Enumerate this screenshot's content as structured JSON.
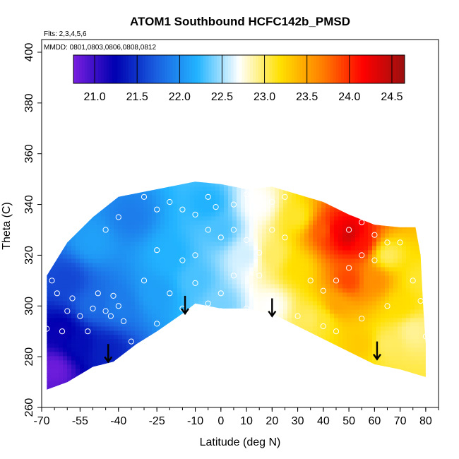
{
  "chart_data": {
    "type": "heatmap",
    "title": "ATOM1 Southbound HCFC142b_PMSD",
    "flights_note": "Flts: 2,3,4,5,6",
    "dates_note": "MMDD: 0801,0803,0806,0808,0812",
    "xlabel": "Latitude (deg N)",
    "ylabel": "Theta (C)",
    "xlim": [
      -70,
      85
    ],
    "ylim": [
      260,
      405
    ],
    "x_ticks": [
      -70,
      -55,
      -40,
      -25,
      -10,
      0,
      10,
      20,
      30,
      40,
      50,
      60,
      70,
      80
    ],
    "x_tick_labels": [
      "-70",
      "-55",
      "-40",
      "-25",
      "-10",
      "0",
      "10",
      "20",
      "30",
      "40",
      "50",
      "60",
      "70",
      "80"
    ],
    "y_ticks": [
      260,
      280,
      300,
      320,
      340,
      360,
      380,
      400
    ],
    "y_tick_labels": [
      "260",
      "280",
      "300",
      "320",
      "340",
      "360",
      "380",
      "400"
    ],
    "colorbar": {
      "min": 20.75,
      "max": 24.65,
      "ticks": [
        21.0,
        21.5,
        22.0,
        22.5,
        23.0,
        23.5,
        24.0,
        24.5
      ],
      "tick_labels": [
        "21.0",
        "21.5",
        "22.0",
        "22.5",
        "23.0",
        "23.5",
        "24.0",
        "24.5"
      ],
      "colors": [
        "#7a1fe0",
        "#0000b0",
        "#1a5fe0",
        "#22b4ff",
        "#ffffff",
        "#ffe000",
        "#ff8000",
        "#ff0000",
        "#9a1010"
      ]
    },
    "domain_top": [
      [
        -68,
        312
      ],
      [
        -60,
        325
      ],
      [
        -50,
        335
      ],
      [
        -40,
        343
      ],
      [
        -25,
        346
      ],
      [
        -10,
        349
      ],
      [
        0,
        348
      ],
      [
        10,
        346
      ],
      [
        20,
        347
      ],
      [
        30,
        344
      ],
      [
        40,
        341
      ],
      [
        50,
        336
      ],
      [
        60,
        332
      ],
      [
        70,
        331
      ],
      [
        76,
        331
      ],
      [
        78,
        320
      ],
      [
        79,
        300
      ],
      [
        80,
        285
      ]
    ],
    "domain_bottom": [
      [
        -68,
        267
      ],
      [
        -60,
        270
      ],
      [
        -50,
        276
      ],
      [
        -42,
        278
      ],
      [
        -33,
        285
      ],
      [
        -25,
        290
      ],
      [
        -15,
        297
      ],
      [
        -10,
        301
      ],
      [
        0,
        299
      ],
      [
        10,
        299
      ],
      [
        20,
        297
      ],
      [
        30,
        292
      ],
      [
        40,
        287
      ],
      [
        50,
        282
      ],
      [
        60,
        277
      ],
      [
        70,
        275
      ],
      [
        80,
        272
      ]
    ],
    "field_anchors": [
      {
        "lat": -65,
        "theta": 275,
        "value": 20.8
      },
      {
        "lat": -62,
        "theta": 290,
        "value": 21.2
      },
      {
        "lat": -55,
        "theta": 285,
        "value": 21.3
      },
      {
        "lat": -45,
        "theta": 282,
        "value": 21.4
      },
      {
        "lat": -60,
        "theta": 310,
        "value": 21.6
      },
      {
        "lat": -50,
        "theta": 300,
        "value": 21.8
      },
      {
        "lat": -40,
        "theta": 300,
        "value": 21.9
      },
      {
        "lat": -50,
        "theta": 325,
        "value": 22.1
      },
      {
        "lat": -35,
        "theta": 335,
        "value": 21.9
      },
      {
        "lat": -20,
        "theta": 320,
        "value": 22.2
      },
      {
        "lat": -25,
        "theta": 305,
        "value": 22.1
      },
      {
        "lat": -10,
        "theta": 310,
        "value": 22.3
      },
      {
        "lat": 0,
        "theta": 300,
        "value": 22.4
      },
      {
        "lat": 0,
        "theta": 330,
        "value": 22.3
      },
      {
        "lat": -5,
        "theta": 340,
        "value": 22.2
      },
      {
        "lat": 10,
        "theta": 320,
        "value": 22.6
      },
      {
        "lat": 15,
        "theta": 340,
        "value": 22.7
      },
      {
        "lat": 20,
        "theta": 320,
        "value": 23.0
      },
      {
        "lat": 20,
        "theta": 300,
        "value": 22.7
      },
      {
        "lat": 30,
        "theta": 315,
        "value": 23.2
      },
      {
        "lat": 35,
        "theta": 295,
        "value": 23.0
      },
      {
        "lat": 40,
        "theta": 330,
        "value": 23.8
      },
      {
        "lat": 45,
        "theta": 330,
        "value": 24.2
      },
      {
        "lat": 50,
        "theta": 328,
        "value": 24.4
      },
      {
        "lat": 55,
        "theta": 325,
        "value": 24.1
      },
      {
        "lat": 50,
        "theta": 310,
        "value": 23.9
      },
      {
        "lat": 45,
        "theta": 300,
        "value": 23.5
      },
      {
        "lat": 60,
        "theta": 310,
        "value": 23.6
      },
      {
        "lat": 65,
        "theta": 320,
        "value": 23.0
      },
      {
        "lat": 70,
        "theta": 300,
        "value": 23.2
      },
      {
        "lat": 65,
        "theta": 285,
        "value": 23.0
      },
      {
        "lat": 75,
        "theta": 290,
        "value": 22.9
      },
      {
        "lat": 78,
        "theta": 310,
        "value": 23.1
      },
      {
        "lat": 55,
        "theta": 285,
        "value": 23.3
      },
      {
        "lat": 30,
        "theta": 335,
        "value": 23.1
      },
      {
        "lat": 40,
        "theta": 295,
        "value": 23.1
      }
    ],
    "sample_points": [
      [
        -68,
        291
      ],
      [
        -66,
        310
      ],
      [
        -64,
        305
      ],
      [
        -62,
        290
      ],
      [
        -60,
        298
      ],
      [
        -58,
        303
      ],
      [
        -55,
        296
      ],
      [
        -52,
        290
      ],
      [
        -50,
        299
      ],
      [
        -48,
        305
      ],
      [
        -45,
        298
      ],
      [
        -43,
        296
      ],
      [
        -42,
        304
      ],
      [
        -40,
        300
      ],
      [
        -38,
        294
      ],
      [
        -35,
        286
      ],
      [
        -33,
        282
      ],
      [
        -45,
        330
      ],
      [
        -40,
        335
      ],
      [
        -30,
        343
      ],
      [
        -25,
        338
      ],
      [
        -20,
        341
      ],
      [
        -15,
        338
      ],
      [
        -10,
        336
      ],
      [
        -5,
        343
      ],
      [
        -2,
        339
      ],
      [
        5,
        340
      ],
      [
        10,
        344
      ],
      [
        15,
        343
      ],
      [
        20,
        341
      ],
      [
        25,
        343
      ],
      [
        -25,
        322
      ],
      [
        -15,
        318
      ],
      [
        -10,
        320
      ],
      [
        -5,
        330
      ],
      [
        0,
        327
      ],
      [
        5,
        330
      ],
      [
        10,
        326
      ],
      [
        15,
        321
      ],
      [
        20,
        330
      ],
      [
        25,
        327
      ],
      [
        -30,
        310
      ],
      [
        -20,
        305
      ],
      [
        -10,
        309
      ],
      [
        0,
        305
      ],
      [
        5,
        312
      ],
      [
        15,
        312
      ],
      [
        -25,
        293
      ],
      [
        -15,
        299
      ],
      [
        -5,
        301
      ],
      [
        0,
        298
      ],
      [
        10,
        299
      ],
      [
        20,
        300
      ],
      [
        30,
        296
      ],
      [
        40,
        292
      ],
      [
        35,
        310
      ],
      [
        40,
        306
      ],
      [
        45,
        310
      ],
      [
        50,
        315
      ],
      [
        55,
        320
      ],
      [
        60,
        318
      ],
      [
        65,
        325
      ],
      [
        50,
        330
      ],
      [
        55,
        333
      ],
      [
        60,
        328
      ],
      [
        70,
        325
      ],
      [
        75,
        310
      ],
      [
        78,
        302
      ],
      [
        80,
        288
      ],
      [
        45,
        290
      ],
      [
        55,
        295
      ],
      [
        65,
        300
      ]
    ],
    "arrows": [
      {
        "lat": -44,
        "theta": 285,
        "length": 7
      },
      {
        "lat": -14,
        "theta": 304,
        "length": 7
      },
      {
        "lat": 20,
        "theta": 303,
        "length": 7
      },
      {
        "lat": 61,
        "theta": 286,
        "length": 7
      }
    ]
  }
}
